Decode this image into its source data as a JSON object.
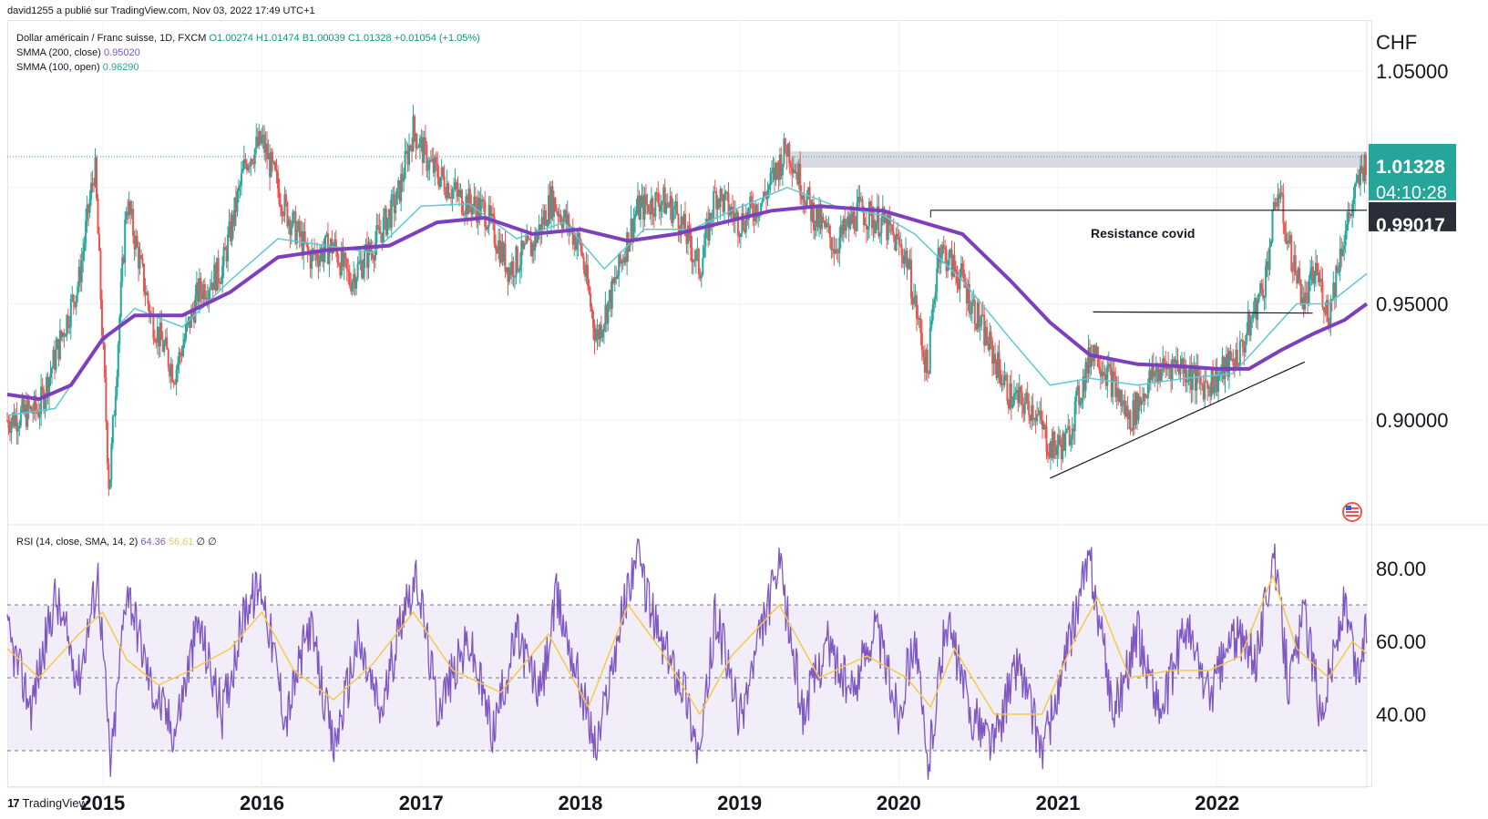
{
  "header": {
    "publish_line": "david1255 a publié sur TradingView.com, Nov 03, 2022 17:49 UTC+1"
  },
  "legend": {
    "symbol": "Dollar américain / Franc suisse, 1D, FXCM",
    "open": "O1.00274",
    "high": "H1.01474",
    "low": "B1.00039",
    "close": "C1.01328",
    "change": "+0.01054 (+1.05%)",
    "smma200_label": "SMMA (200, close)",
    "smma200_value": "0.95020",
    "smma100_label": "SMMA (100, open)",
    "smma100_value": "0.96290",
    "rsi_label": "RSI (14, close, SMA, 14, 2)",
    "rsi_value": "64.36",
    "rsi_sma_value": "56.61",
    "rsi_extra": "∅ ∅"
  },
  "price_axis": {
    "currency": "CHF",
    "ticks": [
      "1.05000",
      "0.95000",
      "0.90000"
    ],
    "last_price": "1.01328",
    "countdown": "04:10:28",
    "level_label": "0.99017"
  },
  "rsi_axis": {
    "ticks": [
      "80.00",
      "60.00",
      "40.00"
    ]
  },
  "time_axis": {
    "ticks": [
      "2015",
      "2016",
      "2017",
      "2018",
      "2019",
      "2020",
      "2021",
      "2022"
    ]
  },
  "annotations": {
    "resistance_label": "Resistance covid"
  },
  "footer": {
    "brand": "TradingView"
  },
  "colors": {
    "up": "#26a69a",
    "down": "#ef5350",
    "smma200": "#7e3fbd",
    "smma100": "#5ec8d8",
    "rsi": "#7e57c2",
    "rsi_sma": "#f7c948",
    "rsi_band": "#ede7f6",
    "last_price_bg": "#26a69a",
    "level_bg": "#2a2e39",
    "resistance_zone": "#d1d4dc"
  },
  "chart_data": [
    {
      "type": "candlestick",
      "title": "Dollar américain / Franc suisse, 1D, FXCM",
      "ylabel": "CHF",
      "y_scale": "linear",
      "ylim": [
        0.855,
        1.072
      ],
      "x_ticks": [
        "2015",
        "2016",
        "2017",
        "2018",
        "2019",
        "2020",
        "2021",
        "2022"
      ],
      "x_range": [
        2014.4,
        2022.94
      ],
      "price_path": [
        [
          2014.4,
          0.9
        ],
        [
          2014.6,
          0.905
        ],
        [
          2014.85,
          0.96
        ],
        [
          2014.95,
          1.01
        ],
        [
          2015.04,
          0.87
        ],
        [
          2015.15,
          0.995
        ],
        [
          2015.3,
          0.945
        ],
        [
          2015.45,
          0.92
        ],
        [
          2015.6,
          0.955
        ],
        [
          2015.75,
          0.965
        ],
        [
          2015.9,
          1.012
        ],
        [
          2016.0,
          1.02
        ],
        [
          2016.15,
          0.99
        ],
        [
          2016.3,
          0.97
        ],
        [
          2016.45,
          0.975
        ],
        [
          2016.55,
          0.96
        ],
        [
          2016.7,
          0.975
        ],
        [
          2016.85,
          0.995
        ],
        [
          2016.95,
          1.025
        ],
        [
          2017.05,
          1.01
        ],
        [
          2017.25,
          0.995
        ],
        [
          2017.4,
          0.99
        ],
        [
          2017.55,
          0.965
        ],
        [
          2017.7,
          0.975
        ],
        [
          2017.82,
          0.995
        ],
        [
          2018.0,
          0.975
        ],
        [
          2018.1,
          0.935
        ],
        [
          2018.2,
          0.955
        ],
        [
          2018.35,
          0.99
        ],
        [
          2018.5,
          0.995
        ],
        [
          2018.6,
          0.99
        ],
        [
          2018.75,
          0.965
        ],
        [
          2018.85,
          0.998
        ],
        [
          2019.0,
          0.985
        ],
        [
          2019.15,
          0.995
        ],
        [
          2019.3,
          1.018
        ],
        [
          2019.45,
          0.99
        ],
        [
          2019.6,
          0.975
        ],
        [
          2019.75,
          0.99
        ],
        [
          2019.9,
          0.985
        ],
        [
          2020.05,
          0.97
        ],
        [
          2020.18,
          0.92
        ],
        [
          2020.25,
          0.975
        ],
        [
          2020.4,
          0.96
        ],
        [
          2020.55,
          0.935
        ],
        [
          2020.7,
          0.91
        ],
        [
          2020.85,
          0.905
        ],
        [
          2020.95,
          0.888
        ],
        [
          2021.05,
          0.89
        ],
        [
          2021.22,
          0.932
        ],
        [
          2021.35,
          0.915
        ],
        [
          2021.45,
          0.9
        ],
        [
          2021.6,
          0.92
        ],
        [
          2021.75,
          0.925
        ],
        [
          2021.9,
          0.915
        ],
        [
          2022.0,
          0.918
        ],
        [
          2022.15,
          0.93
        ],
        [
          2022.3,
          0.96
        ],
        [
          2022.38,
          1.0
        ],
        [
          2022.45,
          0.975
        ],
        [
          2022.55,
          0.95
        ],
        [
          2022.62,
          0.965
        ],
        [
          2022.7,
          0.945
        ],
        [
          2022.78,
          0.975
        ],
        [
          2022.84,
          0.99
        ],
        [
          2022.9,
          1.005
        ],
        [
          2022.94,
          1.013
        ]
      ],
      "smma200_path": [
        [
          2014.4,
          0.911
        ],
        [
          2014.6,
          0.909
        ],
        [
          2014.8,
          0.915
        ],
        [
          2015.0,
          0.935
        ],
        [
          2015.2,
          0.945
        ],
        [
          2015.5,
          0.945
        ],
        [
          2015.8,
          0.955
        ],
        [
          2016.1,
          0.97
        ],
        [
          2016.4,
          0.973
        ],
        [
          2016.8,
          0.975
        ],
        [
          2017.1,
          0.985
        ],
        [
          2017.4,
          0.987
        ],
        [
          2017.7,
          0.98
        ],
        [
          2018.0,
          0.982
        ],
        [
          2018.3,
          0.977
        ],
        [
          2018.6,
          0.98
        ],
        [
          2018.9,
          0.985
        ],
        [
          2019.2,
          0.99
        ],
        [
          2019.5,
          0.992
        ],
        [
          2019.9,
          0.99
        ],
        [
          2020.1,
          0.986
        ],
        [
          2020.4,
          0.98
        ],
        [
          2020.7,
          0.96
        ],
        [
          2020.95,
          0.942
        ],
        [
          2021.2,
          0.928
        ],
        [
          2021.5,
          0.924
        ],
        [
          2021.8,
          0.923
        ],
        [
          2022.0,
          0.922
        ],
        [
          2022.2,
          0.922
        ],
        [
          2022.4,
          0.93
        ],
        [
          2022.6,
          0.937
        ],
        [
          2022.8,
          0.943
        ],
        [
          2022.94,
          0.95
        ]
      ],
      "smma100_path": [
        [
          2014.4,
          0.902
        ],
        [
          2014.7,
          0.905
        ],
        [
          2014.95,
          0.93
        ],
        [
          2015.2,
          0.948
        ],
        [
          2015.5,
          0.94
        ],
        [
          2015.8,
          0.96
        ],
        [
          2016.1,
          0.978
        ],
        [
          2016.4,
          0.975
        ],
        [
          2016.7,
          0.972
        ],
        [
          2017.0,
          0.992
        ],
        [
          2017.3,
          0.993
        ],
        [
          2017.6,
          0.978
        ],
        [
          2017.9,
          0.985
        ],
        [
          2018.15,
          0.965
        ],
        [
          2018.4,
          0.982
        ],
        [
          2018.7,
          0.982
        ],
        [
          2018.95,
          0.99
        ],
        [
          2019.3,
          1.0
        ],
        [
          2019.6,
          0.992
        ],
        [
          2019.9,
          0.988
        ],
        [
          2020.1,
          0.98
        ],
        [
          2020.4,
          0.96
        ],
        [
          2020.7,
          0.935
        ],
        [
          2020.95,
          0.915
        ],
        [
          2021.2,
          0.918
        ],
        [
          2021.5,
          0.915
        ],
        [
          2021.8,
          0.918
        ],
        [
          2022.1,
          0.92
        ],
        [
          2022.3,
          0.935
        ],
        [
          2022.5,
          0.95
        ],
        [
          2022.7,
          0.95
        ],
        [
          2022.94,
          0.963
        ]
      ],
      "resistance_zone": {
        "x": [
          2019.3,
          2022.94
        ],
        "y": [
          1.0085,
          1.0155
        ]
      },
      "resistance_covid_line": {
        "x": [
          2020.2,
          2022.94
        ],
        "y": 0.9902
      },
      "neckline": {
        "x": [
          2021.22,
          2022.6
        ],
        "y": [
          0.9465,
          0.946
        ]
      },
      "ascending_trendline": {
        "x": [
          2020.95,
          2022.55
        ],
        "y": [
          0.875,
          0.925
        ]
      },
      "last_price_line": 1.01328
    },
    {
      "type": "line",
      "title": "RSI (14, close, SMA, 14, 2)",
      "ylim": [
        20,
        90
      ],
      "bands": [
        30,
        50,
        70
      ],
      "series": [
        {
          "name": "RSI",
          "points": [
            [
              2014.4,
              62
            ],
            [
              2014.55,
              42
            ],
            [
              2014.7,
              72
            ],
            [
              2014.85,
              50
            ],
            [
              2014.97,
              78
            ],
            [
              2015.05,
              25
            ],
            [
              2015.15,
              76
            ],
            [
              2015.3,
              48
            ],
            [
              2015.45,
              35
            ],
            [
              2015.6,
              65
            ],
            [
              2015.75,
              40
            ],
            [
              2015.9,
              70
            ],
            [
              2016.0,
              75
            ],
            [
              2016.15,
              38
            ],
            [
              2016.3,
              65
            ],
            [
              2016.45,
              30
            ],
            [
              2016.6,
              60
            ],
            [
              2016.75,
              40
            ],
            [
              2016.9,
              72
            ],
            [
              2016.98,
              76
            ],
            [
              2017.1,
              42
            ],
            [
              2017.3,
              60
            ],
            [
              2017.45,
              35
            ],
            [
              2017.6,
              62
            ],
            [
              2017.75,
              45
            ],
            [
              2017.85,
              72
            ],
            [
              2018.0,
              48
            ],
            [
              2018.1,
              30
            ],
            [
              2018.25,
              65
            ],
            [
              2018.35,
              84
            ],
            [
              2018.5,
              60
            ],
            [
              2018.65,
              48
            ],
            [
              2018.75,
              28
            ],
            [
              2018.85,
              68
            ],
            [
              2019.0,
              38
            ],
            [
              2019.15,
              65
            ],
            [
              2019.25,
              80
            ],
            [
              2019.4,
              40
            ],
            [
              2019.55,
              60
            ],
            [
              2019.7,
              45
            ],
            [
              2019.85,
              65
            ],
            [
              2020.0,
              40
            ],
            [
              2020.1,
              62
            ],
            [
              2020.18,
              25
            ],
            [
              2020.3,
              66
            ],
            [
              2020.45,
              40
            ],
            [
              2020.6,
              32
            ],
            [
              2020.75,
              55
            ],
            [
              2020.9,
              30
            ],
            [
              2021.0,
              45
            ],
            [
              2021.15,
              75
            ],
            [
              2021.2,
              82
            ],
            [
              2021.35,
              40
            ],
            [
              2021.5,
              62
            ],
            [
              2021.65,
              40
            ],
            [
              2021.8,
              65
            ],
            [
              2021.95,
              45
            ],
            [
              2022.1,
              62
            ],
            [
              2022.25,
              55
            ],
            [
              2022.35,
              85
            ],
            [
              2022.45,
              48
            ],
            [
              2022.55,
              68
            ],
            [
              2022.65,
              40
            ],
            [
              2022.8,
              70
            ],
            [
              2022.88,
              50
            ],
            [
              2022.94,
              64
            ]
          ]
        },
        {
          "name": "RSI SMA",
          "points": [
            [
              2014.4,
              58
            ],
            [
              2014.6,
              50
            ],
            [
              2014.85,
              62
            ],
            [
              2015.0,
              68
            ],
            [
              2015.15,
              55
            ],
            [
              2015.35,
              48
            ],
            [
              2015.55,
              52
            ],
            [
              2015.8,
              58
            ],
            [
              2016.0,
              68
            ],
            [
              2016.2,
              52
            ],
            [
              2016.45,
              44
            ],
            [
              2016.7,
              54
            ],
            [
              2016.95,
              68
            ],
            [
              2017.2,
              52
            ],
            [
              2017.5,
              46
            ],
            [
              2017.8,
              62
            ],
            [
              2018.05,
              42
            ],
            [
              2018.3,
              70
            ],
            [
              2018.5,
              58
            ],
            [
              2018.75,
              40
            ],
            [
              2018.95,
              56
            ],
            [
              2019.25,
              70
            ],
            [
              2019.5,
              50
            ],
            [
              2019.8,
              56
            ],
            [
              2020.05,
              50
            ],
            [
              2020.2,
              42
            ],
            [
              2020.35,
              58
            ],
            [
              2020.6,
              40
            ],
            [
              2020.9,
              40
            ],
            [
              2021.1,
              60
            ],
            [
              2021.25,
              72
            ],
            [
              2021.45,
              50
            ],
            [
              2021.7,
              52
            ],
            [
              2021.95,
              52
            ],
            [
              2022.15,
              56
            ],
            [
              2022.35,
              78
            ],
            [
              2022.5,
              58
            ],
            [
              2022.7,
              50
            ],
            [
              2022.85,
              60
            ],
            [
              2022.94,
              56.61
            ]
          ]
        }
      ]
    }
  ]
}
